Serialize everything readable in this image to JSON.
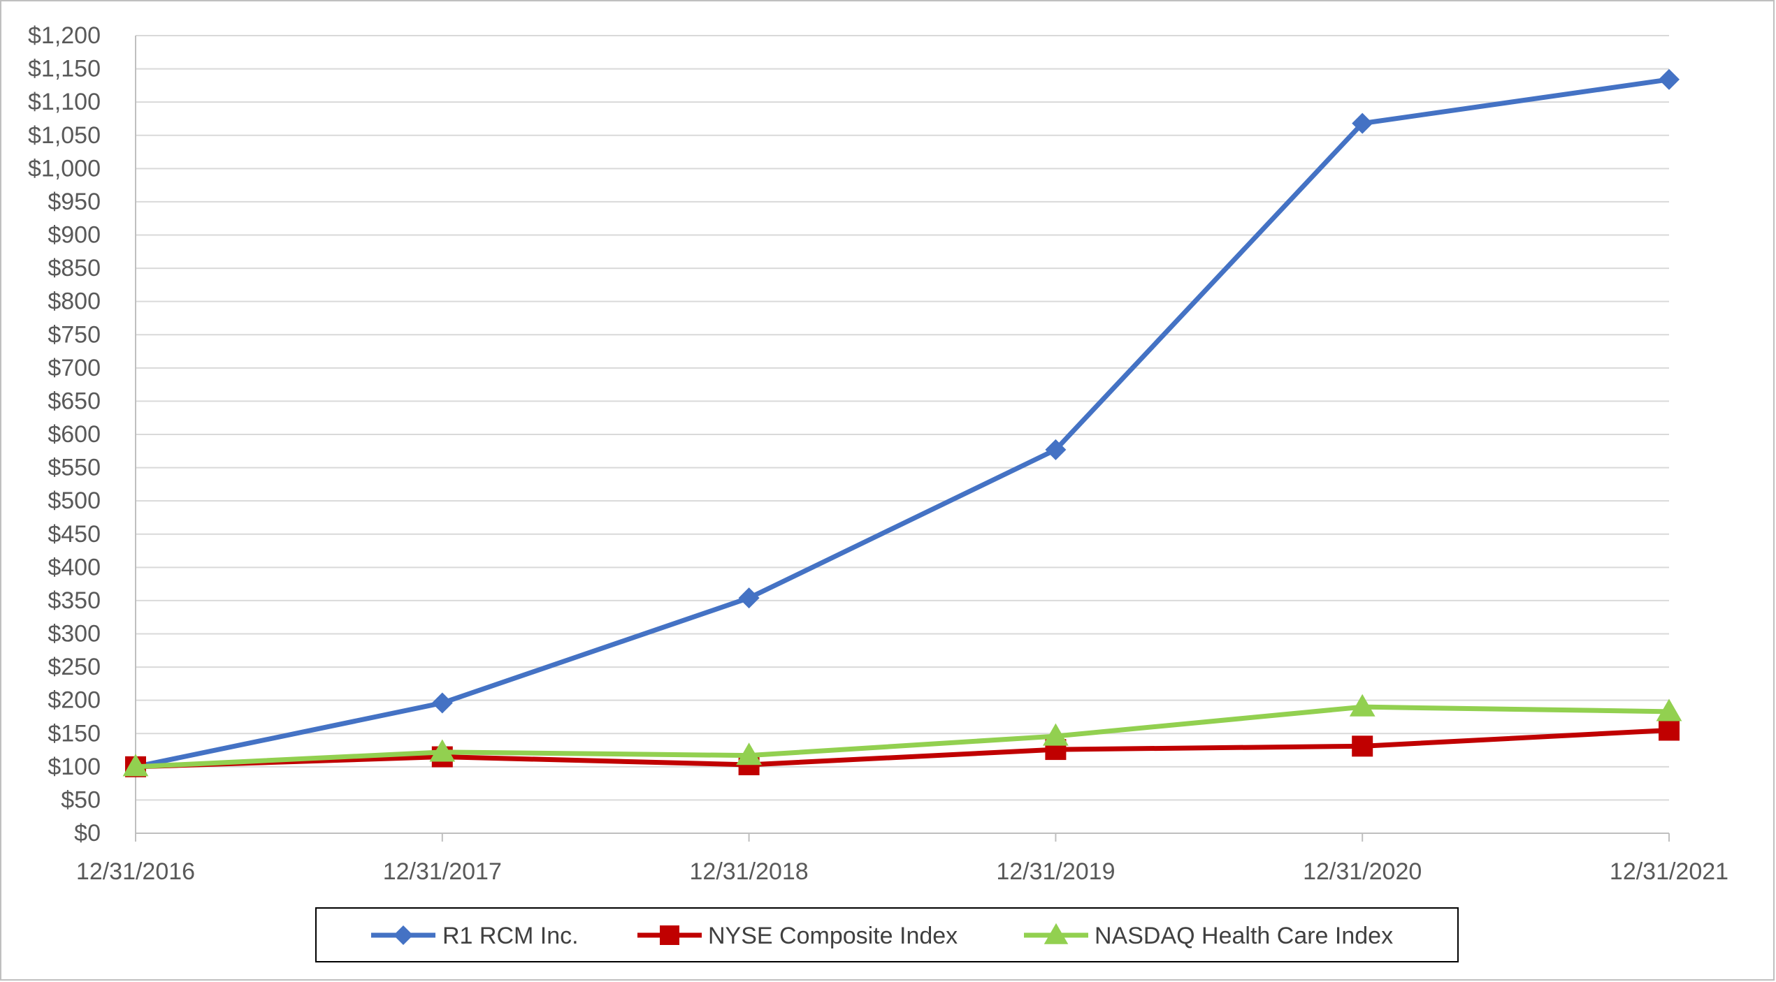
{
  "chart_data": {
    "type": "line",
    "categories": [
      "12/31/2016",
      "12/31/2017",
      "12/31/2018",
      "12/31/2019",
      "12/31/2020",
      "12/31/2021"
    ],
    "ylim": [
      0,
      1200
    ],
    "ystep": 50,
    "ytick_labels": [
      "$0",
      "$50",
      "$100",
      "$150",
      "$200",
      "$250",
      "$300",
      "$350",
      "$400",
      "$450",
      "$500",
      "$550",
      "$600",
      "$650",
      "$700",
      "$750",
      "$800",
      "$850",
      "$900",
      "$950",
      "$1,000",
      "$1,050",
      "$1,100",
      "$1,150",
      "$1,200"
    ],
    "grid": true,
    "legend_position": "bottom",
    "series": [
      {
        "name": "R1 RCM Inc.",
        "values": [
          100,
          196,
          354,
          577,
          1068,
          1134
        ],
        "color": "#4472C4",
        "marker": "diamond"
      },
      {
        "name": "NYSE Composite Index",
        "values": [
          100,
          115,
          103,
          126,
          131,
          155
        ],
        "color": "#C00000",
        "marker": "square"
      },
      {
        "name": "NASDAQ Health Care Index",
        "values": [
          100,
          122,
          117,
          146,
          190,
          183
        ],
        "color": "#92D050",
        "marker": "triangle"
      }
    ]
  }
}
